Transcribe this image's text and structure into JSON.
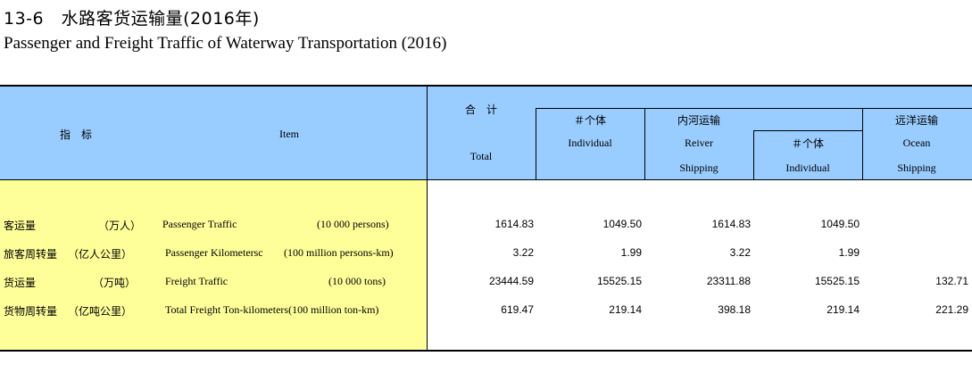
{
  "title": {
    "cn": "13-6　水路客货运输量(2016年)",
    "en": "Passenger and Freight Traffic of Waterway Transportation  (2016)"
  },
  "header": {
    "indicator_cn": "指　标",
    "item_en": "Item",
    "total_cn": "合　计",
    "total_en": "Total",
    "individual_cn": "＃个体",
    "individual_en": "Individual",
    "river_cn": "内河运输",
    "river_en_1": "Reiver",
    "river_en_2": "Shipping",
    "river_individual_cn": "＃个体",
    "river_individual_en": "Individual",
    "ocean_cn": "远洋运输",
    "ocean_en_1": "Ocean",
    "ocean_en_2": "Shipping"
  },
  "rows": [
    {
      "cn": "客运量",
      "unit_cn": "（万人）",
      "en": "Passenger Traffic",
      "unit_en": "(10 000 persons)",
      "total": "1614.83",
      "individual": "1049.50",
      "river": "1614.83",
      "river_individual": "1049.50",
      "ocean": ""
    },
    {
      "cn": "旅客周转量",
      "unit_cn": "（亿人公里）",
      "en": "Passenger Kilometersc",
      "unit_en": "(100 million persons-km)",
      "total": "3.22",
      "individual": "1.99",
      "river": "3.22",
      "river_individual": "1.99",
      "ocean": ""
    },
    {
      "cn": "货运量",
      "unit_cn": "（万吨）",
      "en": "Freight Traffic",
      "unit_en": "(10 000 tons)",
      "total": "23444.59",
      "individual": "15525.15",
      "river": "23311.88",
      "river_individual": "15525.15",
      "ocean": "132.71"
    },
    {
      "cn": "货物周转量",
      "unit_cn": "（亿吨公里）",
      "en": "Total Freight Ton-kilometers(100  million ton-km)",
      "unit_en": "",
      "total": "619.47",
      "individual": "219.14",
      "river": "398.18",
      "river_individual": "219.14",
      "ocean": "221.29"
    }
  ]
}
